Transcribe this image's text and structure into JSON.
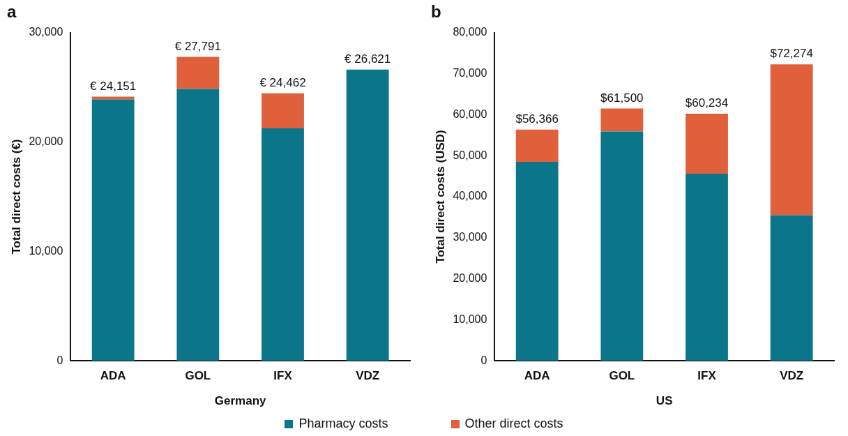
{
  "chart_data": [
    {
      "type": "bar",
      "title": "a",
      "xlabel": "Germany",
      "ylabel": "Total direct costs (€)",
      "categories": [
        "ADA",
        "GOL",
        "IFX",
        "VDZ"
      ],
      "stacked": true,
      "series": [
        {
          "name": "Pharmacy costs",
          "color": "#0b7689",
          "values": [
            23900,
            24850,
            21250,
            26621
          ]
        },
        {
          "name": "Other direct costs",
          "color": "#e0603c",
          "values": [
            251,
            2941,
            3212,
            0
          ]
        }
      ],
      "totals": [
        "€ 24,151",
        "€ 27,791",
        "€ 24,462",
        "€ 26,621"
      ],
      "ylim": [
        0,
        30000
      ],
      "yticks": [
        {
          "value": 0,
          "label": "0"
        },
        {
          "value": 10000,
          "label": "10,000"
        },
        {
          "value": 20000,
          "label": "20,000"
        },
        {
          "value": 30000,
          "label": "30,000"
        }
      ],
      "legend": "bottom"
    },
    {
      "type": "bar",
      "title": "b",
      "xlabel": "US",
      "ylabel": "Total direct costs (USD)",
      "categories": [
        "ADA",
        "GOL",
        "IFX",
        "VDZ"
      ],
      "stacked": true,
      "series": [
        {
          "color": "#0b7689",
          "values": [
            48500,
            55900,
            45600,
            35500
          ]
        },
        {
          "color": "#e0603c",
          "values": [
            7866,
            5600,
            14634,
            36774
          ]
        }
      ],
      "totals": [
        "$56,366",
        "$61,500",
        "$60,234",
        "$72,274"
      ],
      "ylim": [
        0,
        80000
      ],
      "yticks": [
        {
          "value": 0,
          "label": "0"
        },
        {
          "value": 10000,
          "label": "10,000"
        },
        {
          "value": 20000,
          "label": "20,000"
        },
        {
          "value": 30000,
          "label": "30,000"
        },
        {
          "value": 40000,
          "label": "40,000"
        },
        {
          "value": 50000,
          "label": "50,000"
        },
        {
          "value": 60000,
          "label": "60,000"
        },
        {
          "value": 70000,
          "label": "70,000"
        },
        {
          "value": 80000,
          "label": "80,000"
        }
      ]
    }
  ]
}
